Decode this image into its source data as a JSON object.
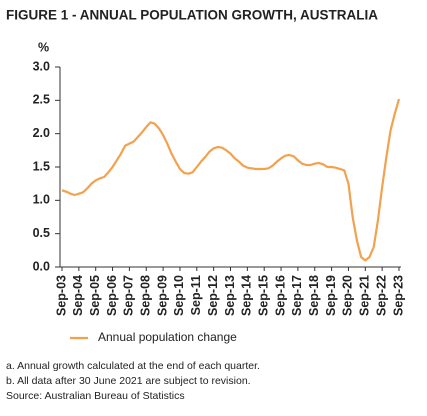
{
  "chart_data": {
    "type": "line",
    "title": "FIGURE 1 - ANNUAL POPULATION GROWTH, AUSTRALIA",
    "y_label": "%",
    "categories": [
      "Sep-03",
      null,
      null,
      null,
      "Sep-04",
      null,
      null,
      null,
      "Sep-05",
      null,
      null,
      null,
      "Sep-06",
      null,
      null,
      null,
      "Sep-07",
      null,
      null,
      null,
      "Sep-08",
      null,
      null,
      null,
      "Sep-09",
      null,
      null,
      null,
      "Sep-10",
      null,
      null,
      null,
      "Sep-11",
      null,
      null,
      null,
      "Sep-12",
      null,
      null,
      null,
      "Sep-13",
      null,
      null,
      null,
      "Sep-14",
      null,
      null,
      null,
      "Sep-15",
      null,
      null,
      null,
      "Sep-16",
      null,
      null,
      null,
      "Sep-17",
      null,
      null,
      null,
      "Sep-18",
      null,
      null,
      null,
      "Sep-19",
      null,
      null,
      null,
      "Sep-20",
      null,
      null,
      null,
      "Sep-21",
      null,
      null,
      null,
      "Sep-22",
      null,
      null,
      null,
      "Sep-23"
    ],
    "series": [
      {
        "name": "Annual population change",
        "color": "#f2a24e",
        "values": [
          1.15,
          1.13,
          1.1,
          1.08,
          1.1,
          1.12,
          1.18,
          1.25,
          1.3,
          1.33,
          1.35,
          1.42,
          1.5,
          1.6,
          1.7,
          1.82,
          1.85,
          1.88,
          1.95,
          2.02,
          2.1,
          2.17,
          2.15,
          2.08,
          1.98,
          1.85,
          1.7,
          1.58,
          1.47,
          1.41,
          1.4,
          1.42,
          1.5,
          1.58,
          1.65,
          1.73,
          1.78,
          1.8,
          1.79,
          1.75,
          1.7,
          1.63,
          1.58,
          1.52,
          1.49,
          1.48,
          1.47,
          1.47,
          1.47,
          1.48,
          1.52,
          1.58,
          1.63,
          1.67,
          1.68,
          1.66,
          1.6,
          1.55,
          1.53,
          1.53,
          1.55,
          1.56,
          1.54,
          1.5,
          1.5,
          1.49,
          1.47,
          1.45,
          1.25,
          0.75,
          0.4,
          0.15,
          0.1,
          0.15,
          0.3,
          0.7,
          1.2,
          1.65,
          2.05,
          2.3,
          2.52
        ]
      }
    ],
    "ylim": [
      0,
      3
    ],
    "yticks": [
      {
        "value": 0,
        "label": "0.0"
      },
      0.5,
      {
        "value": 1,
        "label": "1.0"
      },
      1.5,
      {
        "value": 2,
        "label": "2.0"
      },
      2.5,
      {
        "value": 3,
        "label": "3.0"
      }
    ],
    "legend": "bottom-left",
    "notes": [
      "a. Annual growth calculated at the end of each quarter.",
      "b. All data after 30 June 2021 are subject to revision.",
      "Source: Australian Bureau of Statistics"
    ]
  }
}
